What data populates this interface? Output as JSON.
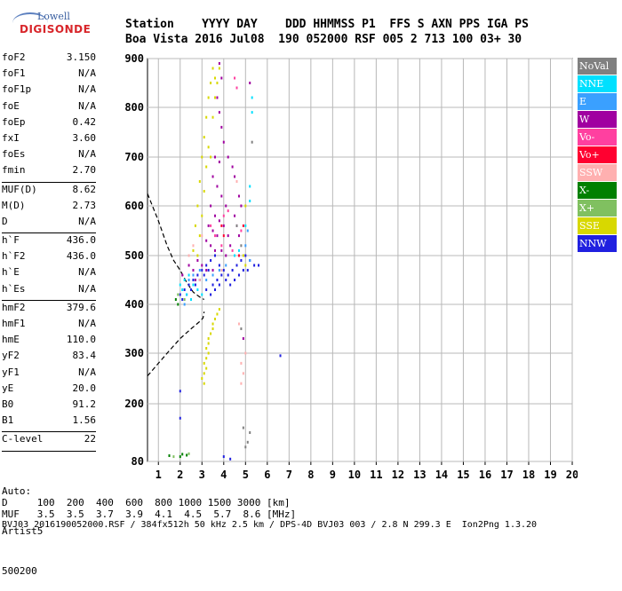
{
  "logo": {
    "brand_top": "Lowell",
    "brand_bottom": "DIGISONDE"
  },
  "header": {
    "line1": "Station    YYYY DAY    DDD HHMMSS P1  FFS S AXN PPS IGA PS",
    "line2": "Boa Vista 2016 Jul08  190 052000 RSF 005 2 713 100 03+ 30"
  },
  "params": [
    {
      "k": "foF2",
      "v": "3.150"
    },
    {
      "k": "foF1",
      "v": "N/A"
    },
    {
      "k": "foF1p",
      "v": "N/A"
    },
    {
      "k": "foE",
      "v": "N/A"
    },
    {
      "k": "foEp",
      "v": "0.42"
    },
    {
      "k": "fxI",
      "v": "3.60"
    },
    {
      "k": "foEs",
      "v": "N/A"
    },
    {
      "k": "fmin",
      "v": "2.70"
    },
    {
      "sep": true
    },
    {
      "k": "MUF(D)",
      "v": "8.62"
    },
    {
      "k": "M(D)",
      "v": "2.73"
    },
    {
      "k": "D",
      "v": "N/A"
    },
    {
      "sep": true
    },
    {
      "k": "h`F",
      "v": "436.0"
    },
    {
      "k": "h`F2",
      "v": "436.0"
    },
    {
      "k": "h`E",
      "v": "N/A"
    },
    {
      "k": "h`Es",
      "v": "N/A"
    },
    {
      "sep": true
    },
    {
      "k": "hmF2",
      "v": "379.6"
    },
    {
      "k": "hmF1",
      "v": "N/A"
    },
    {
      "k": "hmE",
      "v": "110.0"
    },
    {
      "k": "yF2",
      "v": "83.4"
    },
    {
      "k": "yF1",
      "v": "N/A"
    },
    {
      "k": "yE",
      "v": "20.0"
    },
    {
      "k": "B0",
      "v": "91.2"
    },
    {
      "k": "B1",
      "v": "1.56"
    },
    {
      "sep": true
    },
    {
      "k": "C-level",
      "v": "22"
    },
    {
      "sep": true
    }
  ],
  "autoscale": {
    "line1": "Auto:",
    "line2": "Artist5",
    "line3": "500200"
  },
  "footer": {
    "d_row": "D     100  200  400  600  800 1000 1500 3000 [km]",
    "muf_row": "MUF   3.5  3.5  3.7  3.9  4.1  4.5  5.7  8.6 [MHz]",
    "file_row": "BVJ03_2016190052000.RSF / 384fx512h 50 kHz 2.5 km / DPS-4D BVJ03 003 / 2.8 N 299.3 E  Ion2Png 1.3.20"
  },
  "legend": [
    {
      "label": "NoVal",
      "color": "#808080"
    },
    {
      "label": "NNE",
      "color": "#00e0ff"
    },
    {
      "label": "E",
      "color": "#3aa0ff"
    },
    {
      "label": "W",
      "color": "#a000a0"
    },
    {
      "label": "Vo-",
      "color": "#ff40a0"
    },
    {
      "label": "Vo+",
      "color": "#ff0030"
    },
    {
      "label": "SSW",
      "color": "#ffb0b0"
    },
    {
      "label": "X-",
      "color": "#008000"
    },
    {
      "label": "X+",
      "color": "#80c060"
    },
    {
      "label": "SSE",
      "color": "#d8d800"
    },
    {
      "label": "NNW",
      "color": "#2020e0"
    }
  ],
  "chart_data": {
    "type": "scatter",
    "x_ticks": [
      1,
      2,
      3,
      4,
      5,
      6,
      7,
      8,
      9,
      10,
      11,
      12,
      13,
      14,
      15,
      16,
      17,
      18,
      19,
      20
    ],
    "y_ticks": [
      80,
      200,
      300,
      400,
      500,
      600,
      700,
      800,
      900
    ],
    "xlim": [
      0.5,
      20
    ],
    "ylim": [
      80,
      900
    ],
    "grid": true,
    "profile_line": [
      [
        0.5,
        625
      ],
      [
        1.0,
        570
      ],
      [
        1.4,
        520
      ],
      [
        1.7,
        490
      ],
      [
        2.0,
        470
      ],
      [
        2.3,
        445
      ],
      [
        2.6,
        425
      ],
      [
        2.9,
        415
      ],
      [
        3.1,
        410
      ]
    ],
    "underlying_line": [
      [
        0.5,
        255
      ],
      [
        1.0,
        280
      ],
      [
        1.5,
        305
      ],
      [
        2.0,
        330
      ],
      [
        2.5,
        350
      ],
      [
        2.9,
        365
      ],
      [
        3.05,
        372
      ],
      [
        3.1,
        385
      ]
    ],
    "series": [
      {
        "name": "SSE",
        "points": [
          [
            3.4,
            850
          ],
          [
            3.5,
            880
          ],
          [
            3.6,
            860
          ],
          [
            3.3,
            820
          ],
          [
            3.2,
            780
          ],
          [
            3.5,
            780
          ],
          [
            3.1,
            740
          ],
          [
            3.3,
            720
          ],
          [
            3.0,
            700
          ],
          [
            3.2,
            680
          ],
          [
            2.9,
            650
          ],
          [
            3.1,
            630
          ],
          [
            2.8,
            600
          ],
          [
            3.0,
            580
          ],
          [
            2.7,
            560
          ],
          [
            2.9,
            540
          ],
          [
            2.6,
            510
          ],
          [
            2.8,
            500
          ],
          [
            3.6,
            820
          ],
          [
            3.7,
            850
          ],
          [
            3.4,
            700
          ],
          [
            3.8,
            880
          ],
          [
            3.3,
            330
          ],
          [
            3.4,
            340
          ],
          [
            3.5,
            350
          ],
          [
            3.2,
            310
          ],
          [
            3.3,
            300
          ],
          [
            3.1,
            280
          ],
          [
            3.2,
            270
          ],
          [
            3.0,
            250
          ],
          [
            3.1,
            240
          ],
          [
            3.6,
            370
          ],
          [
            3.7,
            380
          ],
          [
            3.5,
            360
          ],
          [
            3.8,
            390
          ],
          [
            5.0,
            480
          ],
          [
            4.9,
            500
          ],
          [
            5.0,
            600
          ],
          [
            3.2,
            290
          ],
          [
            3.3,
            320
          ],
          [
            3.1,
            260
          ]
        ]
      },
      {
        "name": "W",
        "points": [
          [
            3.8,
            890
          ],
          [
            3.9,
            860
          ],
          [
            3.7,
            820
          ],
          [
            3.8,
            790
          ],
          [
            3.9,
            760
          ],
          [
            4.0,
            730
          ],
          [
            3.6,
            700
          ],
          [
            3.8,
            690
          ],
          [
            3.5,
            660
          ],
          [
            3.7,
            640
          ],
          [
            3.9,
            620
          ],
          [
            4.1,
            600
          ],
          [
            3.4,
            600
          ],
          [
            3.6,
            580
          ],
          [
            3.8,
            570
          ],
          [
            4.0,
            560
          ],
          [
            3.3,
            560
          ],
          [
            3.5,
            550
          ],
          [
            3.7,
            540
          ],
          [
            4.2,
            540
          ],
          [
            3.2,
            530
          ],
          [
            3.4,
            520
          ],
          [
            3.6,
            510
          ],
          [
            3.9,
            510
          ],
          [
            4.1,
            500
          ],
          [
            4.3,
            520
          ],
          [
            4.5,
            580
          ],
          [
            4.7,
            620
          ],
          [
            4.5,
            660
          ],
          [
            2.8,
            490
          ],
          [
            3.0,
            480
          ],
          [
            3.2,
            470
          ],
          [
            2.6,
            470
          ],
          [
            4.6,
            560
          ],
          [
            4.8,
            600
          ],
          [
            4.4,
            680
          ],
          [
            4.2,
            700
          ],
          [
            5.2,
            850
          ],
          [
            4.7,
            540
          ],
          [
            3.5,
            470
          ],
          [
            2.7,
            450
          ],
          [
            4.9,
            330
          ],
          [
            2.1,
            460
          ],
          [
            2.4,
            480
          ]
        ]
      },
      {
        "name": "NNW",
        "points": [
          [
            2.0,
            420
          ],
          [
            2.2,
            430
          ],
          [
            2.4,
            440
          ],
          [
            2.6,
            450
          ],
          [
            2.8,
            460
          ],
          [
            3.0,
            470
          ],
          [
            3.2,
            480
          ],
          [
            3.4,
            490
          ],
          [
            3.6,
            500
          ],
          [
            3.8,
            480
          ],
          [
            4.0,
            470
          ],
          [
            4.2,
            460
          ],
          [
            4.4,
            470
          ],
          [
            4.6,
            480
          ],
          [
            4.8,
            490
          ],
          [
            5.0,
            500
          ],
          [
            5.2,
            490
          ],
          [
            5.4,
            480
          ],
          [
            5.6,
            480
          ],
          [
            2.1,
            410
          ],
          [
            2.3,
            420
          ],
          [
            2.5,
            430
          ],
          [
            2.7,
            440
          ],
          [
            2.9,
            450
          ],
          [
            3.1,
            460
          ],
          [
            3.3,
            470
          ],
          [
            3.5,
            440
          ],
          [
            3.7,
            450
          ],
          [
            3.9,
            460
          ],
          [
            4.1,
            450
          ],
          [
            4.3,
            440
          ],
          [
            4.5,
            450
          ],
          [
            4.7,
            460
          ],
          [
            4.9,
            470
          ],
          [
            5.1,
            470
          ],
          [
            3.2,
            430
          ],
          [
            3.4,
            420
          ],
          [
            3.6,
            430
          ],
          [
            3.8,
            440
          ],
          [
            6.6,
            295
          ],
          [
            2.0,
            225
          ],
          [
            2.0,
            170
          ],
          [
            4.0,
            90
          ],
          [
            4.3,
            85
          ]
        ]
      },
      {
        "name": "NNE",
        "points": [
          [
            2.0,
            440
          ],
          [
            2.2,
            450
          ],
          [
            2.4,
            460
          ],
          [
            2.6,
            440
          ],
          [
            2.8,
            430
          ],
          [
            3.0,
            420
          ],
          [
            2.1,
            430
          ],
          [
            2.3,
            420
          ],
          [
            2.5,
            410
          ],
          [
            5.3,
            820
          ],
          [
            5.3,
            790
          ],
          [
            5.2,
            640
          ],
          [
            5.2,
            610
          ],
          [
            5.0,
            560
          ],
          [
            4.5,
            500
          ],
          [
            4.7,
            510
          ]
        ]
      },
      {
        "name": "E",
        "points": [
          [
            2.4,
            450
          ],
          [
            2.6,
            460
          ],
          [
            2.9,
            470
          ],
          [
            3.2,
            450
          ],
          [
            3.5,
            460
          ],
          [
            3.8,
            470
          ],
          [
            4.1,
            480
          ],
          [
            5.0,
            520
          ],
          [
            5.1,
            550
          ],
          [
            2.2,
            400
          ],
          [
            5.2,
            490
          ]
        ]
      },
      {
        "name": "Vo-",
        "points": [
          [
            4.5,
            860
          ],
          [
            4.6,
            840
          ],
          [
            4.0,
            580
          ],
          [
            4.2,
            590
          ],
          [
            3.4,
            560
          ],
          [
            3.6,
            540
          ],
          [
            3.9,
            520
          ],
          [
            4.4,
            510
          ],
          [
            4.8,
            550
          ]
        ]
      },
      {
        "name": "Vo+",
        "points": [
          [
            4.7,
            500
          ],
          [
            4.9,
            560
          ],
          [
            3.9,
            560
          ],
          [
            4.0,
            540
          ]
        ]
      },
      {
        "name": "SSW",
        "points": [
          [
            2.4,
            500
          ],
          [
            2.6,
            520
          ],
          [
            3.0,
            540
          ],
          [
            4.6,
            650
          ],
          [
            4.8,
            280
          ],
          [
            4.9,
            260
          ],
          [
            4.8,
            240
          ],
          [
            5.0,
            300
          ],
          [
            4.7,
            360
          ],
          [
            3.9,
            470
          ],
          [
            2.9,
            450
          ]
        ]
      },
      {
        "name": "X-",
        "points": [
          [
            1.8,
            410
          ],
          [
            1.9,
            400
          ],
          [
            2.0,
            90
          ],
          [
            2.1,
            95
          ],
          [
            1.5,
            92
          ],
          [
            2.3,
            93
          ]
        ]
      },
      {
        "name": "X+",
        "points": [
          [
            1.9,
            420
          ],
          [
            2.2,
            410
          ],
          [
            1.7,
            90
          ],
          [
            2.4,
            96
          ]
        ]
      },
      {
        "name": "NoVal",
        "points": [
          [
            4.8,
            350
          ],
          [
            5.0,
            110
          ],
          [
            5.1,
            120
          ],
          [
            4.9,
            150
          ],
          [
            5.2,
            140
          ],
          [
            4.6,
            560
          ],
          [
            4.8,
            520
          ],
          [
            5.3,
            730
          ]
        ]
      }
    ]
  }
}
